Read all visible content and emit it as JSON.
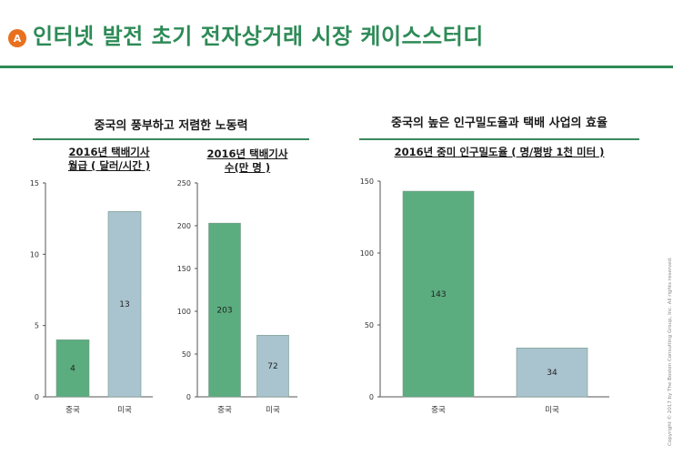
{
  "header": {
    "badge": "A",
    "title": "인터넷 발전 초기 전자상거래 시장 케이스스터디"
  },
  "sections": {
    "left": "중국의 풍부하고 저렴한 노동력",
    "right": "중국의 높은 인구밀도율과 택배 사업의 효율"
  },
  "chart_titles": {
    "c1": [
      "2016년 택배기사",
      "월급 ( 달러/시간 )"
    ],
    "c2": [
      "2016년 택배기사",
      "수(만 명 )"
    ],
    "c3": [
      "2016년 중미 인구밀도율 ( 명/평방 1천 미터 )"
    ]
  },
  "colors": {
    "green": "#5bad7f",
    "blue": "#a9c4cf",
    "accent": "#2e8b57",
    "badge": "#e8701e"
  },
  "chart_data": [
    {
      "type": "bar",
      "title": "2016년 택배기사 월급 ( 달러/시간 )",
      "categories": [
        "중국",
        "미국"
      ],
      "values": [
        4,
        13
      ],
      "ylim": [
        0,
        15
      ],
      "yticks": [
        0,
        5,
        10,
        15
      ],
      "grid": false
    },
    {
      "type": "bar",
      "title": "2016년 택배기사 수(만 명 )",
      "categories": [
        "중국",
        "미국"
      ],
      "values": [
        203,
        72
      ],
      "ylim": [
        0,
        250
      ],
      "yticks": [
        0,
        50,
        100,
        150,
        200,
        250
      ],
      "grid": false
    },
    {
      "type": "bar",
      "title": "2016년 중미 인구밀도율 ( 명/평방 1천 미터 )",
      "categories": [
        "중국",
        "미국"
      ],
      "values": [
        143,
        34
      ],
      "ylim": [
        0,
        150
      ],
      "yticks": [
        0,
        50,
        100,
        150
      ],
      "grid": false
    }
  ],
  "footer": {
    "copyright": "Copyright © 2017 by The Boston Consulting Group, Inc. All rights reserved."
  }
}
